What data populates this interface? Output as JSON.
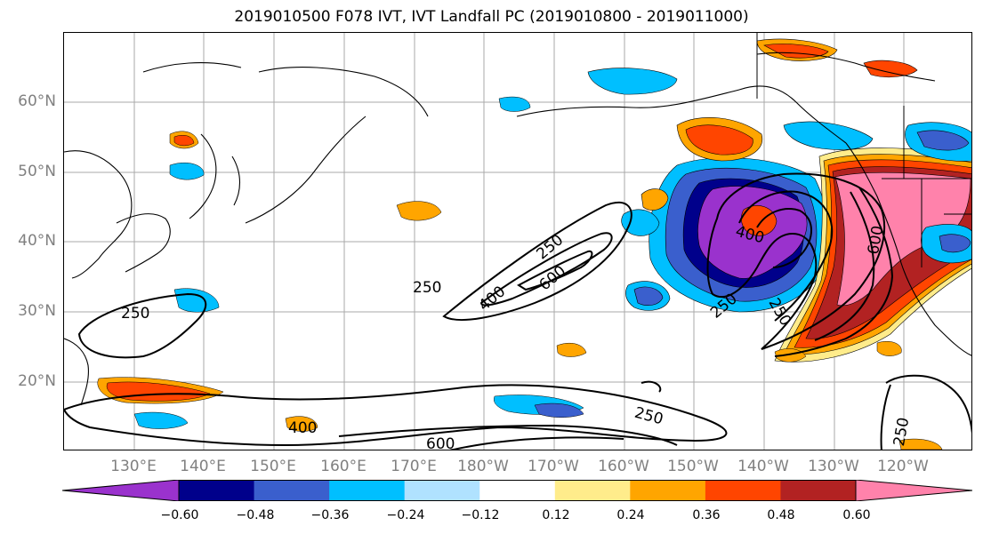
{
  "title": "2019010500 F078 IVT, IVT Landfall PC (2019010800 - 2019011000)",
  "axes": {
    "y_ticks": [
      "60°N",
      "50°N",
      "40°N",
      "30°N",
      "20°N"
    ],
    "x_ticks": [
      "130°E",
      "140°E",
      "150°E",
      "160°E",
      "170°E",
      "180°W",
      "170°W",
      "160°W",
      "150°W",
      "140°W",
      "130°W",
      "120°W"
    ]
  },
  "contour_labels": [
    "250",
    "250",
    "400",
    "600",
    "250",
    "400",
    "250",
    "250",
    "600",
    "400",
    "600",
    "250",
    "250"
  ],
  "colorbar": {
    "colors": [
      "#9a32cd",
      "#00008b",
      "#3a5fcd",
      "#00bfff",
      "#b0e2ff",
      "#ffffff",
      "#ffec8b",
      "#ffa500",
      "#ff4500",
      "#b22222",
      "#ff82ab"
    ],
    "tick_labels": [
      "−0.60",
      "−0.48",
      "−0.36",
      "−0.24",
      "−0.12",
      "0.12",
      "0.24",
      "0.36",
      "0.48",
      "0.60"
    ]
  }
}
